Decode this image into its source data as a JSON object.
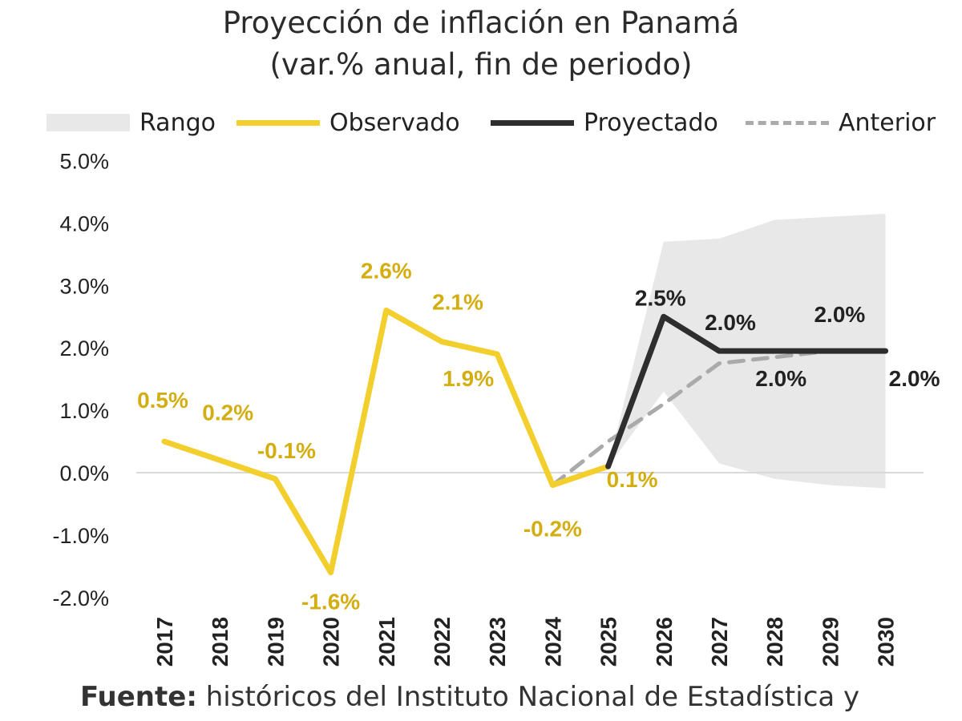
{
  "title_line1": "Proyección de inflación en Panamá",
  "title_line2": "(var.% anual, fin de periodo)",
  "source_label": "Fuente:",
  "source_text": " históricos del Instituto Nacional de Estadística y",
  "legend": {
    "rango": "Rango",
    "observado": "Observado",
    "proyectado": "Proyectado",
    "anterior": "Anterior"
  },
  "colors": {
    "observado": "#f2cf2c",
    "observado_label": "#d4ae10",
    "proyectado": "#2e2e2e",
    "anterior": "#aaaaaa",
    "rango": "#e8e8e8"
  },
  "chart_data": {
    "type": "line",
    "x": [
      "2017",
      "2018",
      "2019",
      "2020",
      "2021",
      "2022",
      "2023",
      "2024",
      "2025",
      "2026",
      "2027",
      "2028",
      "2029",
      "2030"
    ],
    "ylim": [
      -2.0,
      5.0
    ],
    "y_ticks": [
      "-2.0%",
      "-1.0%",
      "0.0%",
      "1.0%",
      "2.0%",
      "3.0%",
      "4.0%",
      "5.0%"
    ],
    "y_tick_values": [
      -2,
      -1,
      0,
      1,
      2,
      3,
      4,
      5
    ],
    "grid": false,
    "legend_position": "top",
    "series": [
      {
        "name": "Observado",
        "x": [
          "2017",
          "2018",
          "2019",
          "2020",
          "2021",
          "2022",
          "2023",
          "2024",
          "2025"
        ],
        "values": [
          0.5,
          0.2,
          -0.1,
          -1.6,
          2.6,
          2.1,
          1.9,
          -0.2,
          0.1
        ],
        "labels": [
          "0.5%",
          "0.2%",
          "-0.1%",
          "-1.6%",
          "2.6%",
          "2.1%",
          "1.9%",
          "-0.2%",
          "0.1%"
        ]
      },
      {
        "name": "Proyectado",
        "x": [
          "2025",
          "2026",
          "2027",
          "2028",
          "2029",
          "2030"
        ],
        "values": [
          0.1,
          2.5,
          1.95,
          1.95,
          1.95,
          1.95
        ],
        "labels": [
          "",
          "2.5%",
          "2.0%",
          "2.0%",
          "2.0%",
          "2.0%"
        ]
      },
      {
        "name": "Anterior",
        "x": [
          "2024",
          "2025",
          "2026",
          "2027",
          "2028",
          "2029"
        ],
        "values": [
          -0.2,
          0.5,
          1.1,
          1.75,
          1.85,
          1.95
        ]
      },
      {
        "name": "Rango",
        "x": [
          "2025",
          "2026",
          "2027",
          "2028",
          "2029",
          "2030"
        ],
        "lower": [
          0.1,
          1.3,
          0.15,
          -0.1,
          -0.2,
          -0.25
        ],
        "upper": [
          0.1,
          3.7,
          3.75,
          4.05,
          4.1,
          4.15
        ]
      }
    ]
  }
}
